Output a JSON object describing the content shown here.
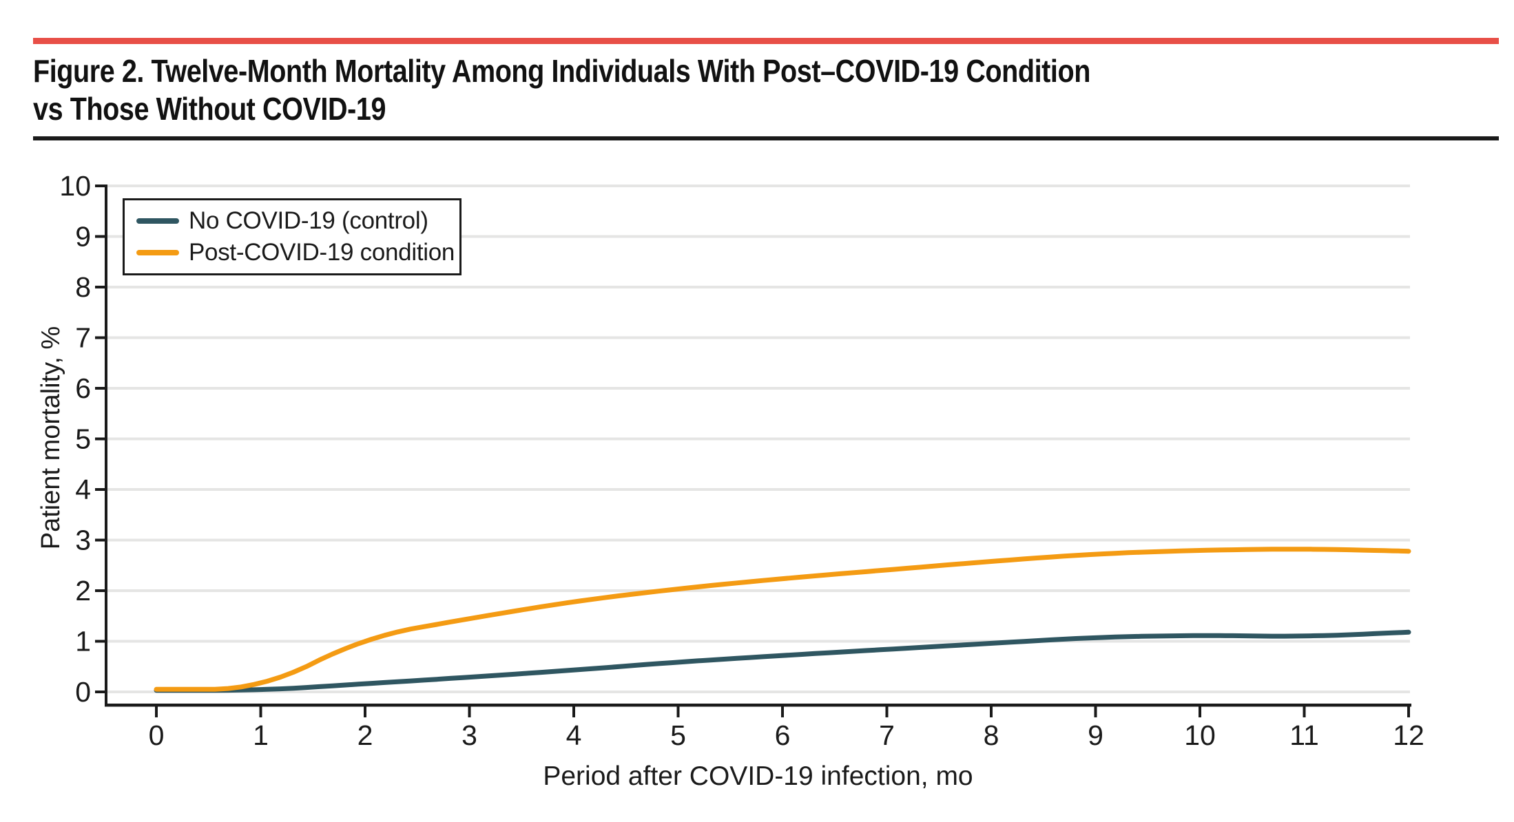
{
  "header": {
    "accent_bar_color": "#E84F47",
    "title_lines": [
      "Figure 2. Twelve-Month Mortality Among Individuals With Post–COVID-19 Condition",
      "vs Those Without COVID-19"
    ]
  },
  "chart_data": {
    "type": "line",
    "title": "",
    "xlabel": "Period after COVID-19 infection, mo",
    "ylabel": "Patient mortality, %",
    "x": [
      0,
      1,
      2,
      3,
      4,
      5,
      6,
      7,
      8,
      9,
      10,
      11,
      12
    ],
    "xlim": [
      0,
      12
    ],
    "ylim": [
      0,
      10
    ],
    "xticks": [
      0,
      1,
      2,
      3,
      4,
      5,
      6,
      7,
      8,
      9,
      10,
      11,
      12
    ],
    "yticks": [
      0,
      1,
      2,
      3,
      4,
      5,
      6,
      7,
      8,
      9,
      10
    ],
    "grid": "horizontal",
    "gridline_color": "#E5E5E4",
    "axis_color": "#1A1A1A",
    "legend_position": "top-left",
    "series": [
      {
        "name": "No COVID-19 (control)",
        "color": "#2F5661",
        "values": [
          0.03,
          0.03,
          0.16,
          0.29,
          0.43,
          0.59,
          0.72,
          0.84,
          0.96,
          1.08,
          1.12,
          1.09,
          1.18
        ]
      },
      {
        "name": "Post-COVID-19 condition",
        "color": "#F49B13",
        "values": [
          0.05,
          0.05,
          1.08,
          1.45,
          1.79,
          2.04,
          2.24,
          2.41,
          2.58,
          2.73,
          2.8,
          2.83,
          2.78
        ]
      }
    ]
  }
}
